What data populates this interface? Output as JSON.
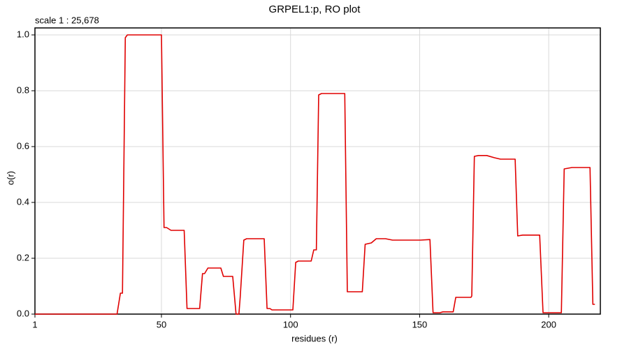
{
  "chart_data": {
    "type": "line",
    "title": "GRPEL1:p, RO plot",
    "annotation": "scale 1 : 25,678",
    "x_label": "residues (r)",
    "y_label": "o(r)",
    "color": "#e00000",
    "grid": true,
    "xlim": [
      1,
      220
    ],
    "ylim": [
      0,
      1.025
    ],
    "xticks": [
      1,
      50,
      100,
      150,
      200
    ],
    "yticks": [
      {
        "value": 0,
        "label": "0.0"
      },
      0.2,
      0.4,
      0.6,
      0.8,
      {
        "value": 1,
        "label": "1.0"
      }
    ],
    "x": [
      1,
      32.8,
      34.1,
      34.9,
      36,
      36.8,
      50,
      51,
      52,
      53.7,
      58.8,
      59.9,
      64.8,
      65.9,
      66.7,
      68,
      73,
      74,
      77.6,
      78.9,
      80,
      80.5,
      81.9,
      83,
      89.8,
      90.9,
      92,
      92.8,
      100.9,
      102,
      103,
      108,
      109,
      110,
      110.9,
      112,
      121,
      122,
      127.8,
      128.9,
      131.3,
      133.2,
      136.8,
      139.5,
      144.4,
      150.3,
      154,
      155.2,
      157.9,
      159,
      163,
      164,
      169.9,
      170.2,
      171.2,
      172.8,
      176,
      179,
      181.3,
      187,
      188,
      189.9,
      196.5,
      197.8,
      204.9,
      206,
      209,
      216,
      217.1,
      217.9
    ],
    "values": [
      0,
      0,
      0.075,
      0.075,
      0.99,
      1,
      1,
      0.31,
      0.31,
      0.3,
      0.3,
      0.02,
      0.02,
      0.145,
      0.145,
      0.165,
      0.165,
      0.135,
      0.135,
      0,
      0,
      0.06,
      0.265,
      0.27,
      0.27,
      0.02,
      0.02,
      0.015,
      0.015,
      0.185,
      0.19,
      0.19,
      0.23,
      0.23,
      0.785,
      0.79,
      0.79,
      0.08,
      0.08,
      0.25,
      0.255,
      0.27,
      0.27,
      0.265,
      0.265,
      0.265,
      0.267,
      0.005,
      0.005,
      0.008,
      0.008,
      0.06,
      0.06,
      0.065,
      0.565,
      0.568,
      0.568,
      0.56,
      0.555,
      0.555,
      0.28,
      0.283,
      0.283,
      0.005,
      0.005,
      0.52,
      0.525,
      0.525,
      0.035,
      0.035
    ]
  }
}
